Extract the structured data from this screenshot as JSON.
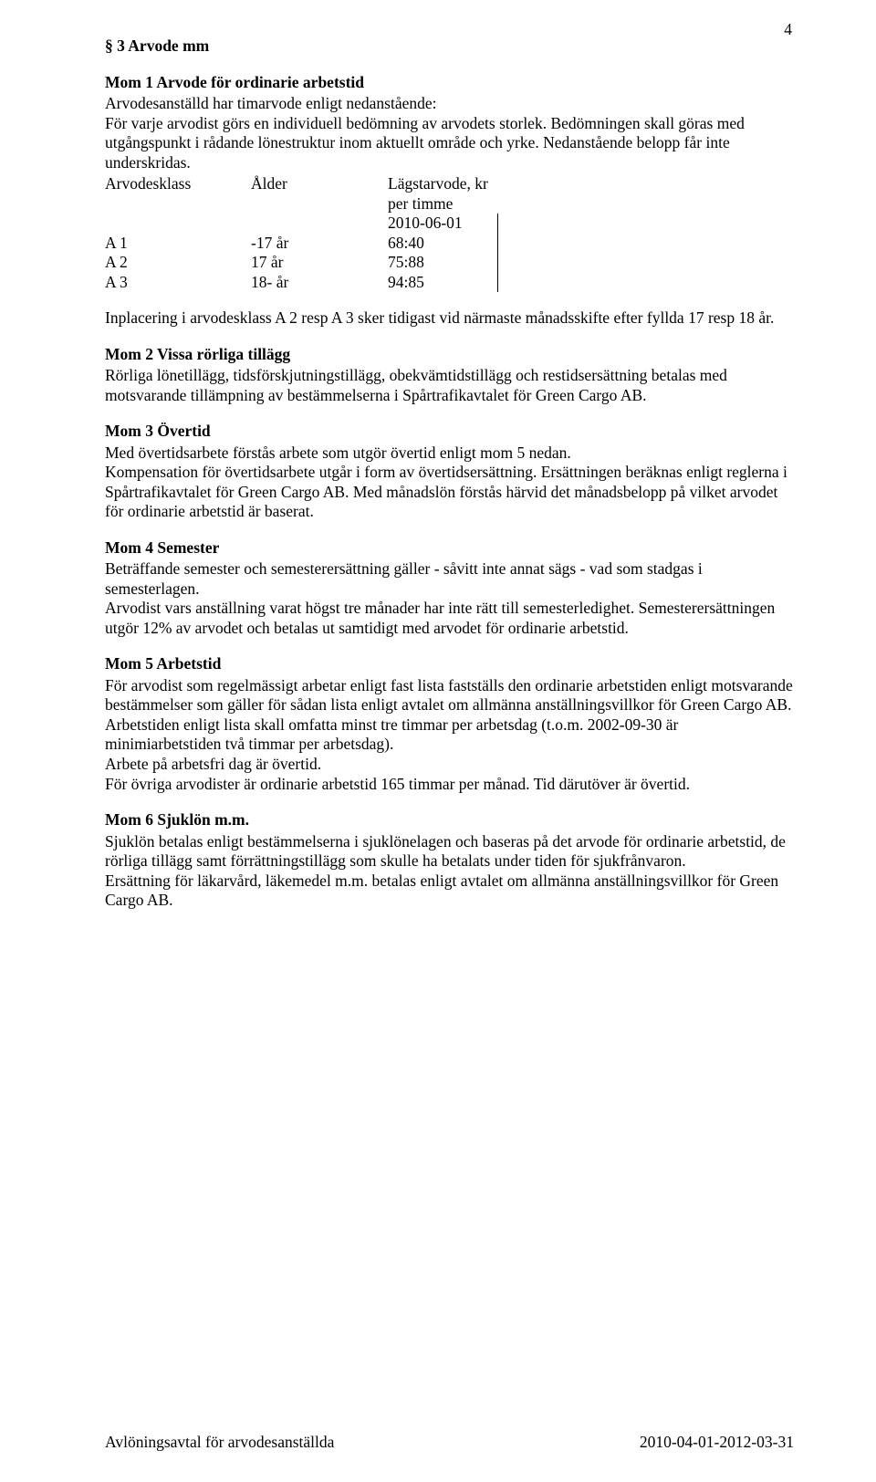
{
  "page": {
    "number": "4"
  },
  "section": {
    "title": "§ 3 Arvode mm",
    "mom1": {
      "heading": "Mom 1 Arvode för ordinarie arbetstid",
      "p1": "Arvodesanställd har timarvode enligt nedanstående:",
      "p2": "För varje arvodist görs en individuell bedömning av arvodets storlek. Bedömningen skall göras med utgångspunkt i rådande lönestruktur inom aktuellt område och yrke. Nedanstående belopp får inte underskridas.",
      "table": {
        "head": {
          "c1": "Arvodesklass",
          "c2": "Ålder",
          "c3a": "Lägstarvode, kr per timme",
          "c3b": "2010-06-01"
        },
        "rows": [
          {
            "c1": "A 1",
            "c2": "-17 år",
            "c3": "68:40"
          },
          {
            "c1": "A 2",
            "c2": "17 år",
            "c3": "75:88"
          },
          {
            "c1": "A 3",
            "c2": "18- år",
            "c3": "94:85"
          }
        ]
      },
      "p3": "Inplacering i arvodesklass A 2 resp A 3 sker tidigast vid närmaste månadsskifte efter fyllda 17 resp 18 år."
    },
    "mom2": {
      "heading": "Mom 2 Vissa rörliga tillägg",
      "p1": "Rörliga lönetillägg, tidsförskjutningstillägg, obekvämtidstillägg och restidsersättning betalas med motsvarande tillämpning av bestämmelserna i Spårtrafikavtalet för Green Cargo AB."
    },
    "mom3": {
      "heading": "Mom 3 Övertid",
      "p1": "Med övertidsarbete förstås arbete som utgör övertid enligt mom 5 nedan.",
      "p2": "Kompensation för övertidsarbete utgår i form av övertidsersättning. Ersättningen beräknas enligt reglerna i Spårtrafikavtalet för Green Cargo AB. Med månadslön förstås härvid det månadsbelopp på vilket arvodet för ordinarie arbetstid är baserat."
    },
    "mom4": {
      "heading": "Mom 4 Semester",
      "p1": "Beträffande semester och semesterersättning gäller - såvitt inte annat sägs - vad som stadgas i semesterlagen.",
      "p2": "Arvodist vars anställning varat högst tre månader har inte rätt till semesterledighet. Semesterersättningen utgör 12% av arvodet och betalas ut samtidigt med arvodet för ordinarie arbetstid."
    },
    "mom5": {
      "heading": "Mom 5 Arbetstid",
      "p1": "För arvodist som regelmässigt arbetar enligt fast lista fastställs den ordinarie arbetstiden enligt motsvarande bestämmelser som gäller för sådan lista enligt avtalet om allmänna anställningsvillkor för Green Cargo AB.",
      "p2": "Arbetstiden enligt lista skall omfatta minst tre timmar per arbetsdag (t.o.m. 2002-09-30 är minimiarbetstiden två timmar per arbetsdag).",
      "p3": "Arbete på arbetsfri dag är övertid.",
      "p4": "För övriga arvodister är ordinarie arbetstid 165 timmar per månad. Tid därutöver är övertid."
    },
    "mom6": {
      "heading": "Mom 6 Sjuklön m.m.",
      "p1": "Sjuklön betalas enligt bestämmelserna i sjuklönelagen och baseras på det arvode för ordinarie arbetstid, de rörliga tillägg samt förrättningstillägg som skulle ha betalats under tiden för sjukfrånvaron.",
      "p2": "Ersättning för läkarvård, läkemedel m.m. betalas enligt avtalet om allmänna anställningsvillkor för Green Cargo AB."
    }
  },
  "footer": {
    "left": "Avlöningsavtal för arvodesanställda",
    "right": "2010-04-01-2012-03-31"
  }
}
